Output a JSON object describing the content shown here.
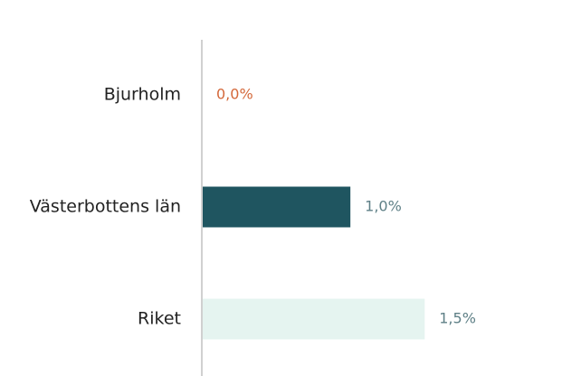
{
  "chart_data": {
    "type": "barh",
    "categories": [
      "Bjurholm",
      "Västerbottens län",
      "Riket"
    ],
    "values": [
      0.0,
      1.0,
      1.5
    ],
    "value_labels": [
      "0,0%",
      "1,0%",
      "1,5%"
    ],
    "colors": [
      "#1f5560",
      "#1f5560",
      "#e5f4f0"
    ],
    "label_colors": [
      "#d4683a",
      "#5f8087",
      "#5f8087"
    ],
    "xlim": [
      0,
      2.4
    ]
  }
}
